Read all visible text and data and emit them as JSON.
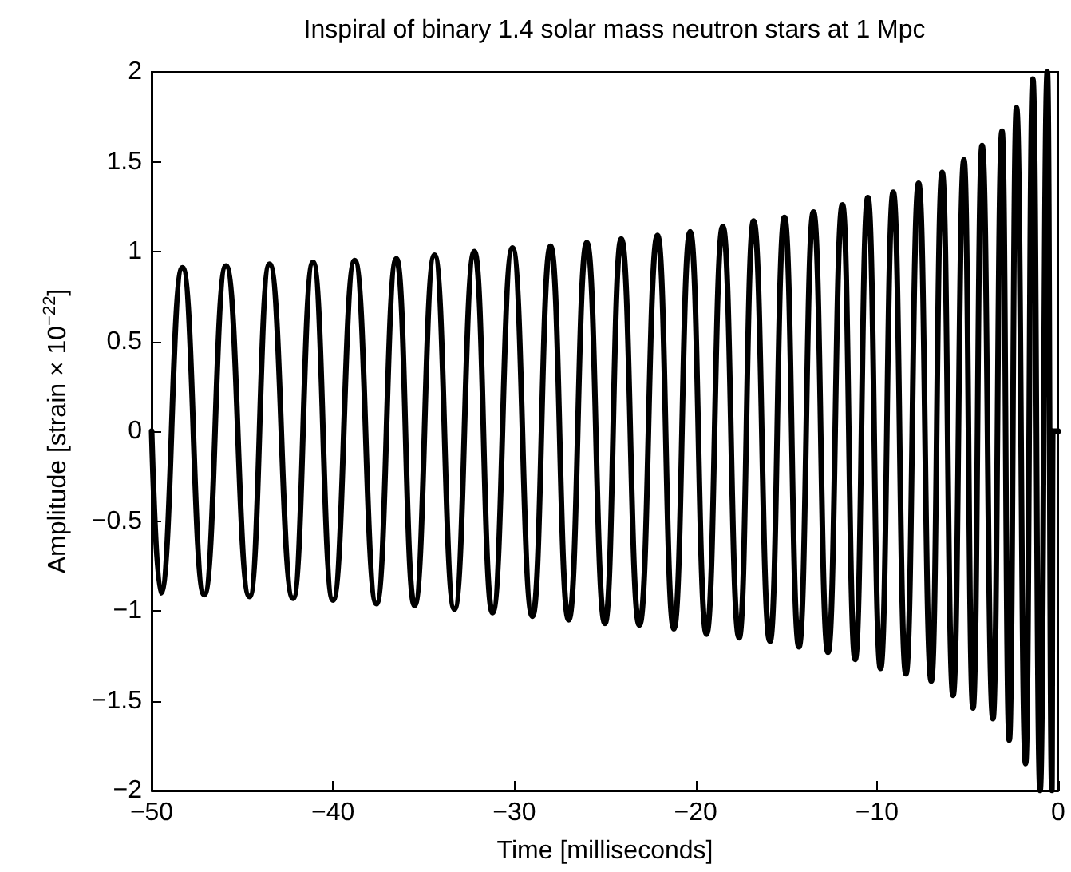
{
  "chart_data": {
    "type": "line",
    "title": "Inspiral of binary 1.4 solar mass neutron stars at 1 Mpc",
    "xlabel": "Time [milliseconds]",
    "ylabel": "Amplitude [strain × 10$^{−22}$]",
    "xlim": [
      -50,
      0
    ],
    "xticks": [
      {
        "value": -50,
        "label": "−50"
      },
      {
        "value": -40,
        "label": "−40"
      },
      {
        "value": -30,
        "label": "−30"
      },
      {
        "value": -20,
        "label": "−20"
      },
      {
        "value": -10,
        "label": "−10"
      },
      0
    ],
    "ylim": [
      -2,
      2
    ],
    "yticks": [
      {
        "value": -2,
        "label": "−2"
      },
      {
        "value": -1.5,
        "label": "−1.5"
      },
      {
        "value": -1,
        "label": "−1"
      },
      {
        "value": -0.5,
        "label": "−0.5"
      },
      0,
      0.5,
      1,
      1.5,
      2
    ],
    "grid": false,
    "marker": "none",
    "line_style": "solid",
    "series": [
      {
        "color": "#000000",
        "x": [
          -50,
          -49.5,
          -48.3,
          -47.1,
          -45.9,
          -44.6,
          -43.5,
          -42.2,
          -41.1,
          -40.0,
          -38.8,
          -37.6,
          -36.5,
          -35.5,
          -34.4,
          -33.3,
          -32.2,
          -31.2,
          -30.1,
          -29.0,
          -28.0,
          -27.0,
          -26.0,
          -25.0,
          -24.1,
          -23.1,
          -22.1,
          -21.2,
          -20.3,
          -19.4,
          -18.5,
          -17.6,
          -16.8,
          -15.9,
          -15.1,
          -14.3,
          -13.5,
          -12.7,
          -11.9,
          -11.2,
          -10.5,
          -9.8,
          -9.1,
          -8.4,
          -7.7,
          -7.0,
          -6.4,
          -5.8,
          -5.2,
          -4.7,
          -4.2,
          -3.6,
          -3.1,
          -2.7,
          -2.3,
          -1.8,
          -1.4,
          -1.0,
          -0.6,
          -0.35,
          -0.3,
          0
        ],
        "values": [
          0,
          -0.9,
          0.91,
          -0.91,
          0.92,
          -0.92,
          0.93,
          -0.93,
          0.94,
          -0.94,
          0.95,
          -0.96,
          0.96,
          -0.97,
          0.98,
          -0.99,
          1.0,
          -1.01,
          1.02,
          -1.03,
          1.03,
          -1.05,
          1.05,
          -1.07,
          1.07,
          -1.08,
          1.09,
          -1.1,
          1.11,
          -1.13,
          1.14,
          -1.15,
          1.17,
          -1.17,
          1.19,
          -1.2,
          1.22,
          -1.23,
          1.26,
          -1.27,
          1.3,
          -1.32,
          1.33,
          -1.35,
          1.38,
          -1.39,
          1.44,
          -1.47,
          1.51,
          -1.54,
          1.59,
          -1.6,
          1.67,
          -1.72,
          1.8,
          -1.85,
          1.96,
          -2.0,
          2.0,
          -2.0,
          0,
          0
        ]
      }
    ]
  }
}
